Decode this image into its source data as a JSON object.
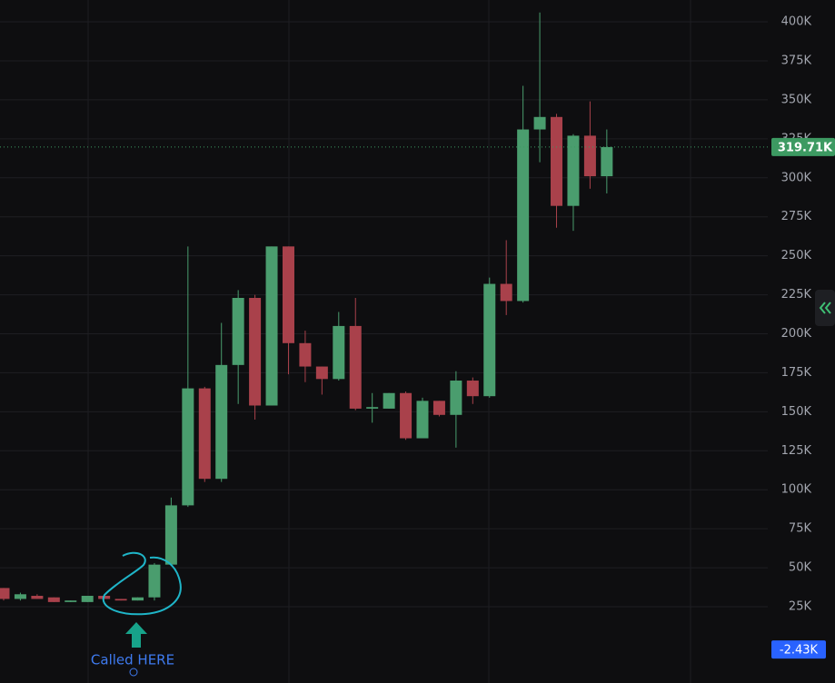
{
  "chart_data": {
    "type": "candlestick",
    "open": [
      37000,
      30000,
      32000,
      31000,
      28000,
      28000,
      32000,
      30000,
      29000,
      31000,
      52000,
      90000,
      165000,
      107000,
      180000,
      223000,
      154000,
      256000,
      194000,
      179000,
      171000,
      205000,
      152000,
      152000,
      162000,
      133000,
      157000,
      148000,
      170000,
      160000,
      232000,
      221000,
      331000,
      339000,
      282000,
      327000,
      301000
    ],
    "high": [
      37000,
      34000,
      33000,
      31000,
      29000,
      32000,
      32000,
      30000,
      31000,
      53000,
      95000,
      256000,
      166000,
      207000,
      228000,
      225000,
      256000,
      256000,
      202000,
      179000,
      214000,
      223000,
      162000,
      162000,
      163000,
      159000,
      157000,
      176000,
      172000,
      236000,
      260000,
      359000,
      406000,
      341000,
      328000,
      349000,
      331000
    ],
    "low": [
      29000,
      29000,
      30000,
      28000,
      28000,
      28000,
      30000,
      29000,
      29000,
      29000,
      51000,
      89000,
      105000,
      105000,
      155000,
      145000,
      154000,
      174000,
      169000,
      161000,
      170000,
      151000,
      143000,
      152000,
      132000,
      133000,
      147000,
      127000,
      155000,
      159000,
      212000,
      220000,
      310000,
      268000,
      266000,
      293000,
      290000
    ],
    "close": [
      30000,
      33000,
      30000,
      28000,
      29000,
      32000,
      30000,
      29000,
      31000,
      52000,
      90000,
      165000,
      107000,
      180000,
      223000,
      154000,
      256000,
      194000,
      179000,
      171000,
      205000,
      152000,
      153000,
      162000,
      133000,
      157000,
      148000,
      170000,
      160000,
      232000,
      221000,
      331000,
      339000,
      282000,
      327000,
      301000,
      319710
    ],
    "up_color": "#4a9d6e",
    "down_color": "#a9414b",
    "ylim": [
      -23900,
      414000
    ],
    "yticks": [
      {
        "value": 25000,
        "label": "25K"
      },
      {
        "value": 50000,
        "label": "50K"
      },
      {
        "value": 75000,
        "label": "75K"
      },
      {
        "value": 100000,
        "label": "100K"
      },
      {
        "value": 125000,
        "label": "125K"
      },
      {
        "value": 150000,
        "label": "150K"
      },
      {
        "value": 175000,
        "label": "175K"
      },
      {
        "value": 200000,
        "label": "200K"
      },
      {
        "value": 225000,
        "label": "225K"
      },
      {
        "value": 250000,
        "label": "250K"
      },
      {
        "value": 275000,
        "label": "275K"
      },
      {
        "value": 300000,
        "label": "300K"
      },
      {
        "value": 325000,
        "label": "325K"
      },
      {
        "value": 350000,
        "label": "350K"
      },
      {
        "value": 375000,
        "label": "375K"
      },
      {
        "value": 400000,
        "label": "400K"
      }
    ],
    "grid": true,
    "price_marker": {
      "value": 319710,
      "label": "319.71K",
      "color": "#3d9a62"
    },
    "cursor_marker": {
      "value": -2430,
      "label": "-2.43K",
      "color": "#2962ff"
    },
    "annotation": "Called HERE"
  }
}
